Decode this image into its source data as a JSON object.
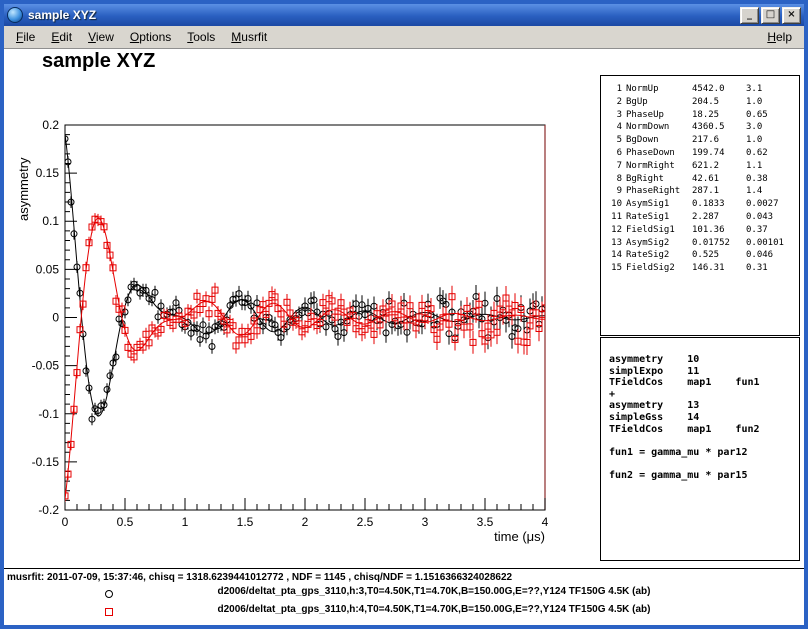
{
  "window": {
    "title": "sample XYZ",
    "controls": {
      "minimize": "_",
      "maximize": "□",
      "close": "×"
    }
  },
  "menubar": {
    "items": [
      {
        "label": "File",
        "accel": "F"
      },
      {
        "label": "Edit",
        "accel": "E"
      },
      {
        "label": "View",
        "accel": "V"
      },
      {
        "label": "Options",
        "accel": "O"
      },
      {
        "label": "Tools",
        "accel": "T"
      },
      {
        "label": "Musrfit",
        "accel": "M"
      }
    ],
    "help": {
      "label": "Help",
      "accel": "H"
    }
  },
  "canvas": {
    "title": "sample XYZ"
  },
  "parameters": [
    {
      "no": "1",
      "name": "NormUp",
      "value": "4542.0",
      "error": "3.1"
    },
    {
      "no": "2",
      "name": "BgUp",
      "value": "204.5",
      "error": "1.0"
    },
    {
      "no": "3",
      "name": "PhaseUp",
      "value": "18.25",
      "error": "0.65"
    },
    {
      "no": "4",
      "name": "NormDown",
      "value": "4360.5",
      "error": "3.0"
    },
    {
      "no": "5",
      "name": "BgDown",
      "value": "217.6",
      "error": "1.0"
    },
    {
      "no": "6",
      "name": "PhaseDown",
      "value": "199.74",
      "error": "0.62"
    },
    {
      "no": "7",
      "name": "NormRight",
      "value": "621.2",
      "error": "1.1"
    },
    {
      "no": "8",
      "name": "BgRight",
      "value": "42.61",
      "error": "0.38"
    },
    {
      "no": "9",
      "name": "PhaseRight",
      "value": "287.1",
      "error": "1.4"
    },
    {
      "no": "10",
      "name": "AsymSig1",
      "value": "0.1833",
      "error": "0.0027"
    },
    {
      "no": "11",
      "name": "RateSig1",
      "value": "2.287",
      "error": "0.043"
    },
    {
      "no": "12",
      "name": "FieldSig1",
      "value": "101.36",
      "error": "0.37"
    },
    {
      "no": "13",
      "name": "AsymSig2",
      "value": "0.01752",
      "error": "0.00101"
    },
    {
      "no": "14",
      "name": "RateSig2",
      "value": "0.525",
      "error": "0.046"
    },
    {
      "no": "15",
      "name": "FieldSig2",
      "value": "146.31",
      "error": "0.31"
    }
  ],
  "theory": {
    "lines": [
      "asymmetry    10",
      "simplExpo    11",
      "TFieldCos    map1    fun1",
      "+",
      "asymmetry    13",
      "simpleGss    14",
      "TFieldCos    map1    fun2",
      "",
      "fun1 = gamma_mu * par12",
      "",
      "fun2 = gamma_mu * par15"
    ]
  },
  "status": "musrfit: 2011-07-09, 15:37:46, chisq = 1318.6239441012772 , NDF = 1145 , chisq/NDF = 1.1516366324028622",
  "legend": [
    {
      "marker": "circle",
      "color": "#000000",
      "label": "d2006/deltat_pta_gps_3110,h:3,T0=4.50K,T1=4.70K,B=150.00G,E=??,Y124 TF150G 4.5K (ab)"
    },
    {
      "marker": "square",
      "color": "#e60000",
      "label": "d2006/deltat_pta_gps_3110,h:4,T0=4.50K,T1=4.70K,B=150.00G,E=??,Y124 TF150G 4.5K (ab)"
    }
  ],
  "chart_data": {
    "type": "scatter",
    "title": "sample XYZ",
    "xlabel": "time (μs)",
    "ylabel": "asymmetry",
    "xlim": [
      0,
      4
    ],
    "ylim": [
      -0.2,
      0.2
    ],
    "x_ticks": [
      0,
      0.5,
      1,
      1.5,
      2,
      2.5,
      3,
      3.5,
      4
    ],
    "x_tick_labels": [
      "0",
      "0.5",
      "1",
      "1.5",
      "2",
      "2.5",
      "3",
      "3.5",
      "4"
    ],
    "y_ticks": [
      -0.2,
      -0.15,
      -0.1,
      -0.05,
      0,
      0.05,
      0.1,
      0.15,
      0.2
    ],
    "y_tick_labels": [
      "-0.2",
      "-0.15",
      "-0.1",
      "-0.05",
      "0",
      "0.05",
      "0.1",
      "0.15",
      "0.2"
    ],
    "grid": false,
    "legend_position": "bottom",
    "t_start": 0,
    "t_end": 4,
    "t_step": 0.025,
    "noise_sigma_base": 0.006,
    "noise_growth_time": 5.0,
    "series": [
      {
        "name": "d2006/deltat_pta_gps_3110,h:3 (Up)",
        "marker": "circle",
        "color": "#000000",
        "seed": 42,
        "model": {
          "a1": 0.1833,
          "rate1": 2.287,
          "freq1_MHz": 1.374,
          "phase1_deg": 18.25,
          "a2": 0.01752,
          "rate2": 0.525,
          "freq2_MHz": 1.983,
          "phase2_deg": 18.25
        }
      },
      {
        "name": "d2006/deltat_pta_gps_3110,h:4 (Down)",
        "marker": "square",
        "color": "#e60000",
        "seed": 1337,
        "model": {
          "a1": 0.1833,
          "rate1": 2.287,
          "freq1_MHz": 1.374,
          "phase1_deg": 199.74,
          "a2": 0.01752,
          "rate2": 0.525,
          "freq2_MHz": 1.983,
          "phase2_deg": 199.74
        }
      }
    ]
  }
}
